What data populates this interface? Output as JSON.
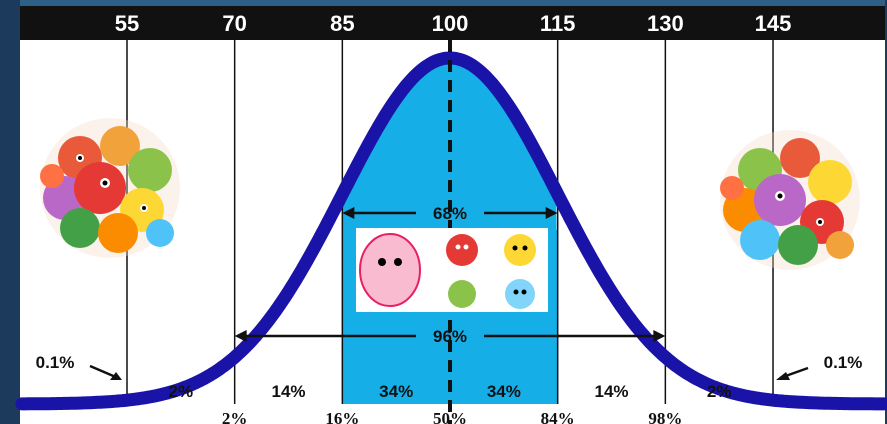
{
  "colors": {
    "frame": "#1c3a5c",
    "header_bar": "#111111",
    "curve": "#1a13a8",
    "center_fill": "#15aee6",
    "line": "#111111"
  },
  "axis": {
    "ticks": [
      "55",
      "70",
      "85",
      "100",
      "115",
      "130",
      "145"
    ]
  },
  "chart_data": {
    "type": "area",
    "x": [
      55,
      70,
      85,
      100,
      115,
      130,
      145
    ],
    "mean": 100,
    "sd": 15,
    "region_percentages": [
      "0.1%",
      "2%",
      "14%",
      "34%",
      "34%",
      "14%",
      "2%",
      "0.1%"
    ],
    "cumulative_labels": [
      "2%",
      "16%",
      "50%",
      "84%",
      "98%"
    ],
    "spans": [
      {
        "label": "68%",
        "from": 85,
        "to": 115
      },
      {
        "label": "96%",
        "from": 70,
        "to": 130
      }
    ]
  },
  "images": {
    "left": "germ-cluster",
    "right": "germ-cluster",
    "center": "germ-set"
  }
}
